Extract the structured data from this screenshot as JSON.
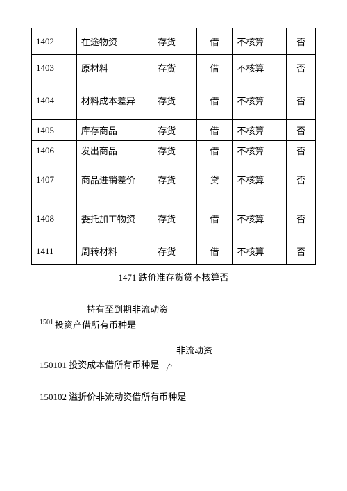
{
  "table": {
    "rows": [
      {
        "code": "1402",
        "name": "在途物资",
        "cat": "存货",
        "dir": "借",
        "acc": "不核算",
        "flag": "否",
        "h": "med"
      },
      {
        "code": "1403",
        "name": "原材料",
        "cat": "存货",
        "dir": "借",
        "acc": "不核算",
        "flag": "否",
        "h": "med"
      },
      {
        "code": "1404",
        "name": "材料成本差异",
        "cat": "存货",
        "dir": "借",
        "acc": "不核算",
        "flag": "否",
        "h": "tall"
      },
      {
        "code": "1405",
        "name": "库存商品",
        "cat": "存货",
        "dir": "借",
        "acc": "不核算",
        "flag": "否",
        "h": "short"
      },
      {
        "code": "1406",
        "name": "发出商品",
        "cat": "存货",
        "dir": "借",
        "acc": "不核算",
        "flag": "否",
        "h": "xshort"
      },
      {
        "code": "1407",
        "name": "商品进销差价",
        "cat": "存货",
        "dir": "贷",
        "acc": "不核算",
        "flag": "否",
        "h": "tall"
      },
      {
        "code": "1408",
        "name": "委托加工物资",
        "cat": "存货",
        "dir": "借",
        "acc": "不核算",
        "flag": "否",
        "h": "tall"
      },
      {
        "code": "1411",
        "name": "周转材料",
        "cat": "存货",
        "dir": "借",
        "acc": "不核算",
        "flag": "否",
        "h": "med"
      }
    ]
  },
  "caption": "1471 跌价准存货贷不核算否",
  "p1501a": "持有至到期非流动资",
  "p1501_code": "1501",
  "p1501b": "投资产借所有币种是",
  "p150101_mid": "非流动资",
  "p150101_line": "150101 投资成本借所有币种是",
  "p150101_trail": "产",
  "p150102_line": "150102 溢折价非流动资借所有币种是"
}
